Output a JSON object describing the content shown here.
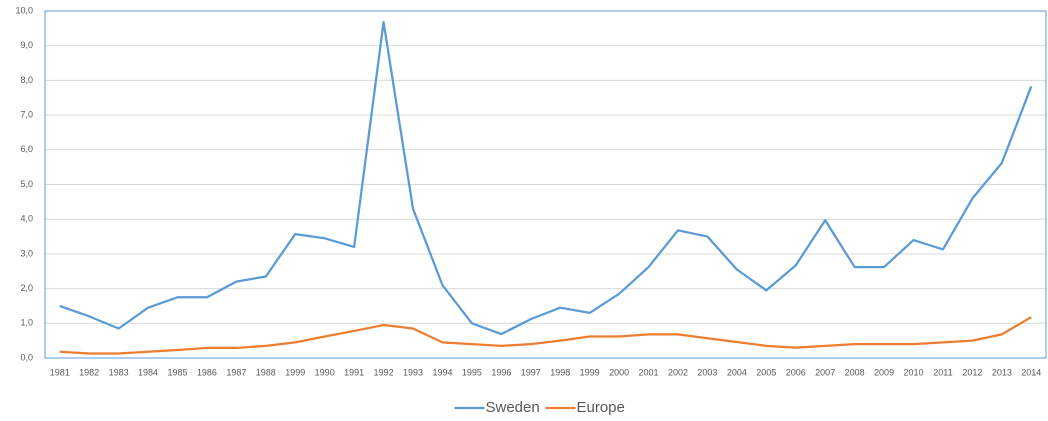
{
  "chart_data": {
    "type": "line",
    "categories": [
      "1981",
      "1982",
      "1983",
      "1984",
      "1985",
      "1986",
      "1987",
      "1988",
      "1999",
      "1990",
      "1991",
      "1992",
      "1993",
      "1994",
      "1995",
      "1996",
      "1997",
      "1998",
      "1999",
      "2000",
      "2001",
      "2002",
      "2003",
      "2004",
      "2005",
      "2006",
      "2007",
      "2008",
      "2009",
      "2010",
      "2011",
      "2012",
      "2013",
      "2014"
    ],
    "series": [
      {
        "name": "Sweden",
        "color": "#5b9bd5",
        "values": [
          1.5,
          1.2,
          0.85,
          1.45,
          1.75,
          1.75,
          2.2,
          2.35,
          3.57,
          3.45,
          3.2,
          9.68,
          4.3,
          2.1,
          1.0,
          0.69,
          1.12,
          1.45,
          1.3,
          1.85,
          2.62,
          3.68,
          3.5,
          2.55,
          1.95,
          2.67,
          3.97,
          2.62,
          2.62,
          3.4,
          3.13,
          4.6,
          5.62,
          7.83
        ]
      },
      {
        "name": "Europe",
        "color": "#ed7d31",
        "values": [
          0.18,
          0.13,
          0.13,
          0.18,
          0.23,
          0.29,
          0.29,
          0.35,
          0.45,
          0.62,
          0.78,
          0.95,
          0.85,
          0.45,
          0.4,
          0.35,
          0.4,
          0.5,
          0.62,
          0.62,
          0.68,
          0.68,
          0.57,
          0.46,
          0.35,
          0.3,
          0.35,
          0.4,
          0.4,
          0.4,
          0.45,
          0.5,
          0.68,
          1.18
        ]
      }
    ],
    "ylim": [
      0,
      10
    ],
    "yticks": [
      {
        "value": 0,
        "label": "0,0"
      },
      {
        "value": 1,
        "label": "1,0"
      },
      {
        "value": 2,
        "label": "2,0"
      },
      {
        "value": 3,
        "label": "3,0"
      },
      {
        "value": 4,
        "label": "4,0"
      },
      {
        "value": 5,
        "label": "5,0"
      },
      {
        "value": 6,
        "label": "6,0"
      },
      {
        "value": 7,
        "label": "7,0"
      },
      {
        "value": 8,
        "label": "8,0"
      },
      {
        "value": 9,
        "label": "9,0"
      },
      {
        "value": 10,
        "label": "10,0"
      }
    ],
    "grid": true,
    "legend": "bottom"
  }
}
